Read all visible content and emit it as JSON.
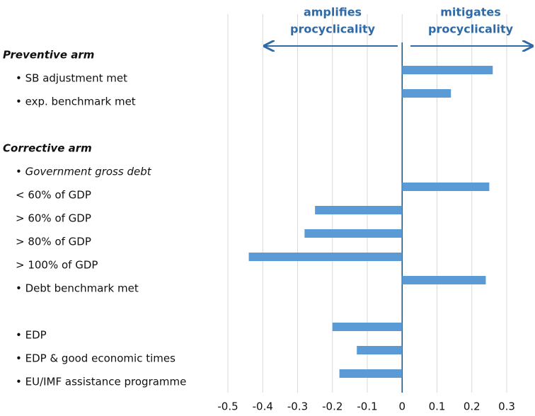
{
  "chart_data": {
    "type": "bar",
    "orientation": "horizontal",
    "categories": [
      "Preventive arm",
      "• SB adjustment met",
      "• exp. benchmark met",
      null,
      "Corrective arm",
      "• Government gross debt",
      "< 60% of GDP",
      "> 60% of GDP",
      "> 80% of GDP",
      "> 100% of GDP",
      "• Debt benchmark met",
      null,
      "• EDP",
      "• EDP & good economic times",
      "• EU/IMF assistance programme"
    ],
    "label_styles": [
      "bold italic",
      "normal",
      "normal",
      "normal",
      "bold italic",
      "italic",
      "normal",
      "normal",
      "normal",
      "normal",
      "normal",
      "normal",
      "normal",
      "normal",
      "normal"
    ],
    "values": [
      null,
      0.26,
      0.14,
      null,
      null,
      null,
      0.25,
      -0.25,
      -0.28,
      -0.44,
      0.24,
      null,
      -0.2,
      -0.13,
      -0.18
    ],
    "color": "#5b9bd5",
    "xlim": [
      -0.5,
      0.3
    ],
    "xticks": [
      -0.5,
      -0.4,
      -0.3,
      -0.2,
      -0.1,
      0,
      0.1,
      0.2,
      0.3
    ],
    "grid": true,
    "annotations": {
      "left": [
        "amplifies",
        "procyclicality"
      ],
      "right": [
        "mitigates",
        "procyclicality"
      ]
    }
  }
}
